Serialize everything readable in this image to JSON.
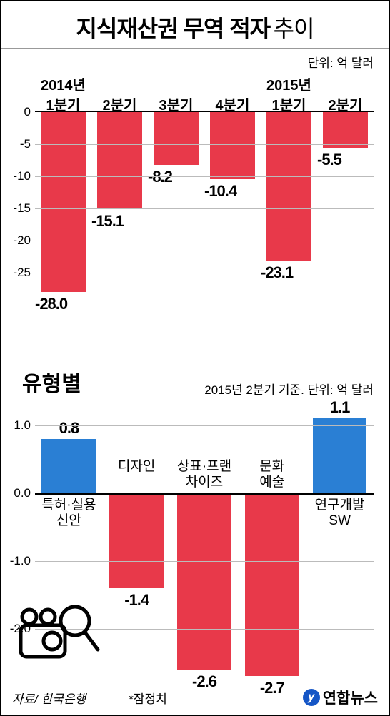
{
  "title_bold": "지식재산권 무역 적자",
  "title_light": "추이",
  "unit_top": "단위: 억 달러",
  "chart1": {
    "type": "bar",
    "bar_color": "#e8394a",
    "grid_color": "#bbbbbb",
    "ymin": -30,
    "ymax": 0,
    "yticks": [
      0,
      -5,
      -10,
      -15,
      -20,
      -25
    ],
    "years": [
      "2014년",
      "",
      "",
      "",
      "2015년",
      ""
    ],
    "quarters": [
      "1분기",
      "2분기",
      "3분기",
      "4분기",
      "1분기",
      "2분기"
    ],
    "values": [
      -28.0,
      -15.1,
      -8.2,
      -10.4,
      -23.1,
      -5.5
    ],
    "labels": [
      "-28.0",
      "-15.1",
      "-8.2",
      "-10.4",
      "-23.1",
      "-5.5"
    ]
  },
  "subtitle": "유형별",
  "unit_sub": "2015년 2분기 기준. 단위: 억 달러",
  "chart2": {
    "type": "bar",
    "pos_color": "#2a7fd4",
    "neg_color": "#e8394a",
    "grid_color": "#bbbbbb",
    "ymin": -2.8,
    "ymax": 1.3,
    "zero": 0,
    "yticks_pos": [
      "1.0"
    ],
    "ytick_pos_val": [
      1.0
    ],
    "yticks_neg": [
      "0.0",
      "-1.0",
      "-2.0"
    ],
    "ytick_neg_val": [
      0,
      -1.0,
      -2.0
    ],
    "categories": [
      "특허·실용\n신안",
      "디자인",
      "상표·프랜\n차이즈",
      "문화\n예술",
      "연구개발\nSW"
    ],
    "values": [
      0.8,
      -1.4,
      -2.6,
      -2.7,
      1.1
    ],
    "labels": [
      "0.8",
      "-1.4",
      "-2.6",
      "-2.7",
      "1.1"
    ]
  },
  "footer_source": "자료/ 한국은행",
  "footer_note": "*잠정치",
  "footer_brand": "연합뉴스",
  "footer_glyph": "y"
}
